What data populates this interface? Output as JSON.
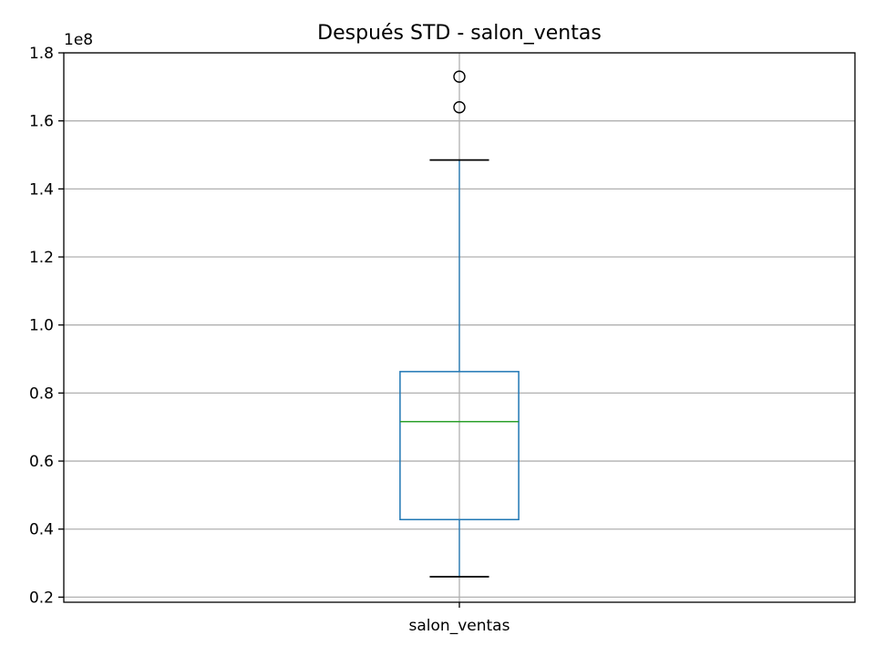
{
  "chart_data": {
    "type": "box",
    "title": "Después STD - salon_ventas",
    "categories": [
      "salon_ventas"
    ],
    "y_offset_label": "1e8",
    "ylim": [
      0.185,
      1.8
    ],
    "yticks": [
      0.2,
      0.4,
      0.6,
      0.8,
      1.0,
      1.2,
      1.4,
      1.6,
      1.8
    ],
    "ytick_labels": [
      "0.2",
      "0.4",
      "0.6",
      "0.8",
      "1.0",
      "1.2",
      "1.4",
      "1.6",
      "1.8"
    ],
    "grid": true,
    "boxes": [
      {
        "name": "salon_ventas",
        "whisker_low": 0.26,
        "q1": 0.428,
        "median": 0.716,
        "q3": 0.863,
        "whisker_high": 1.485,
        "outliers": [
          1.64,
          1.73
        ]
      }
    ],
    "colors": {
      "box": "#1f77b4",
      "median": "#2ca02c",
      "whisker_cap": "#000000",
      "grid": "#b0b0b0"
    }
  }
}
